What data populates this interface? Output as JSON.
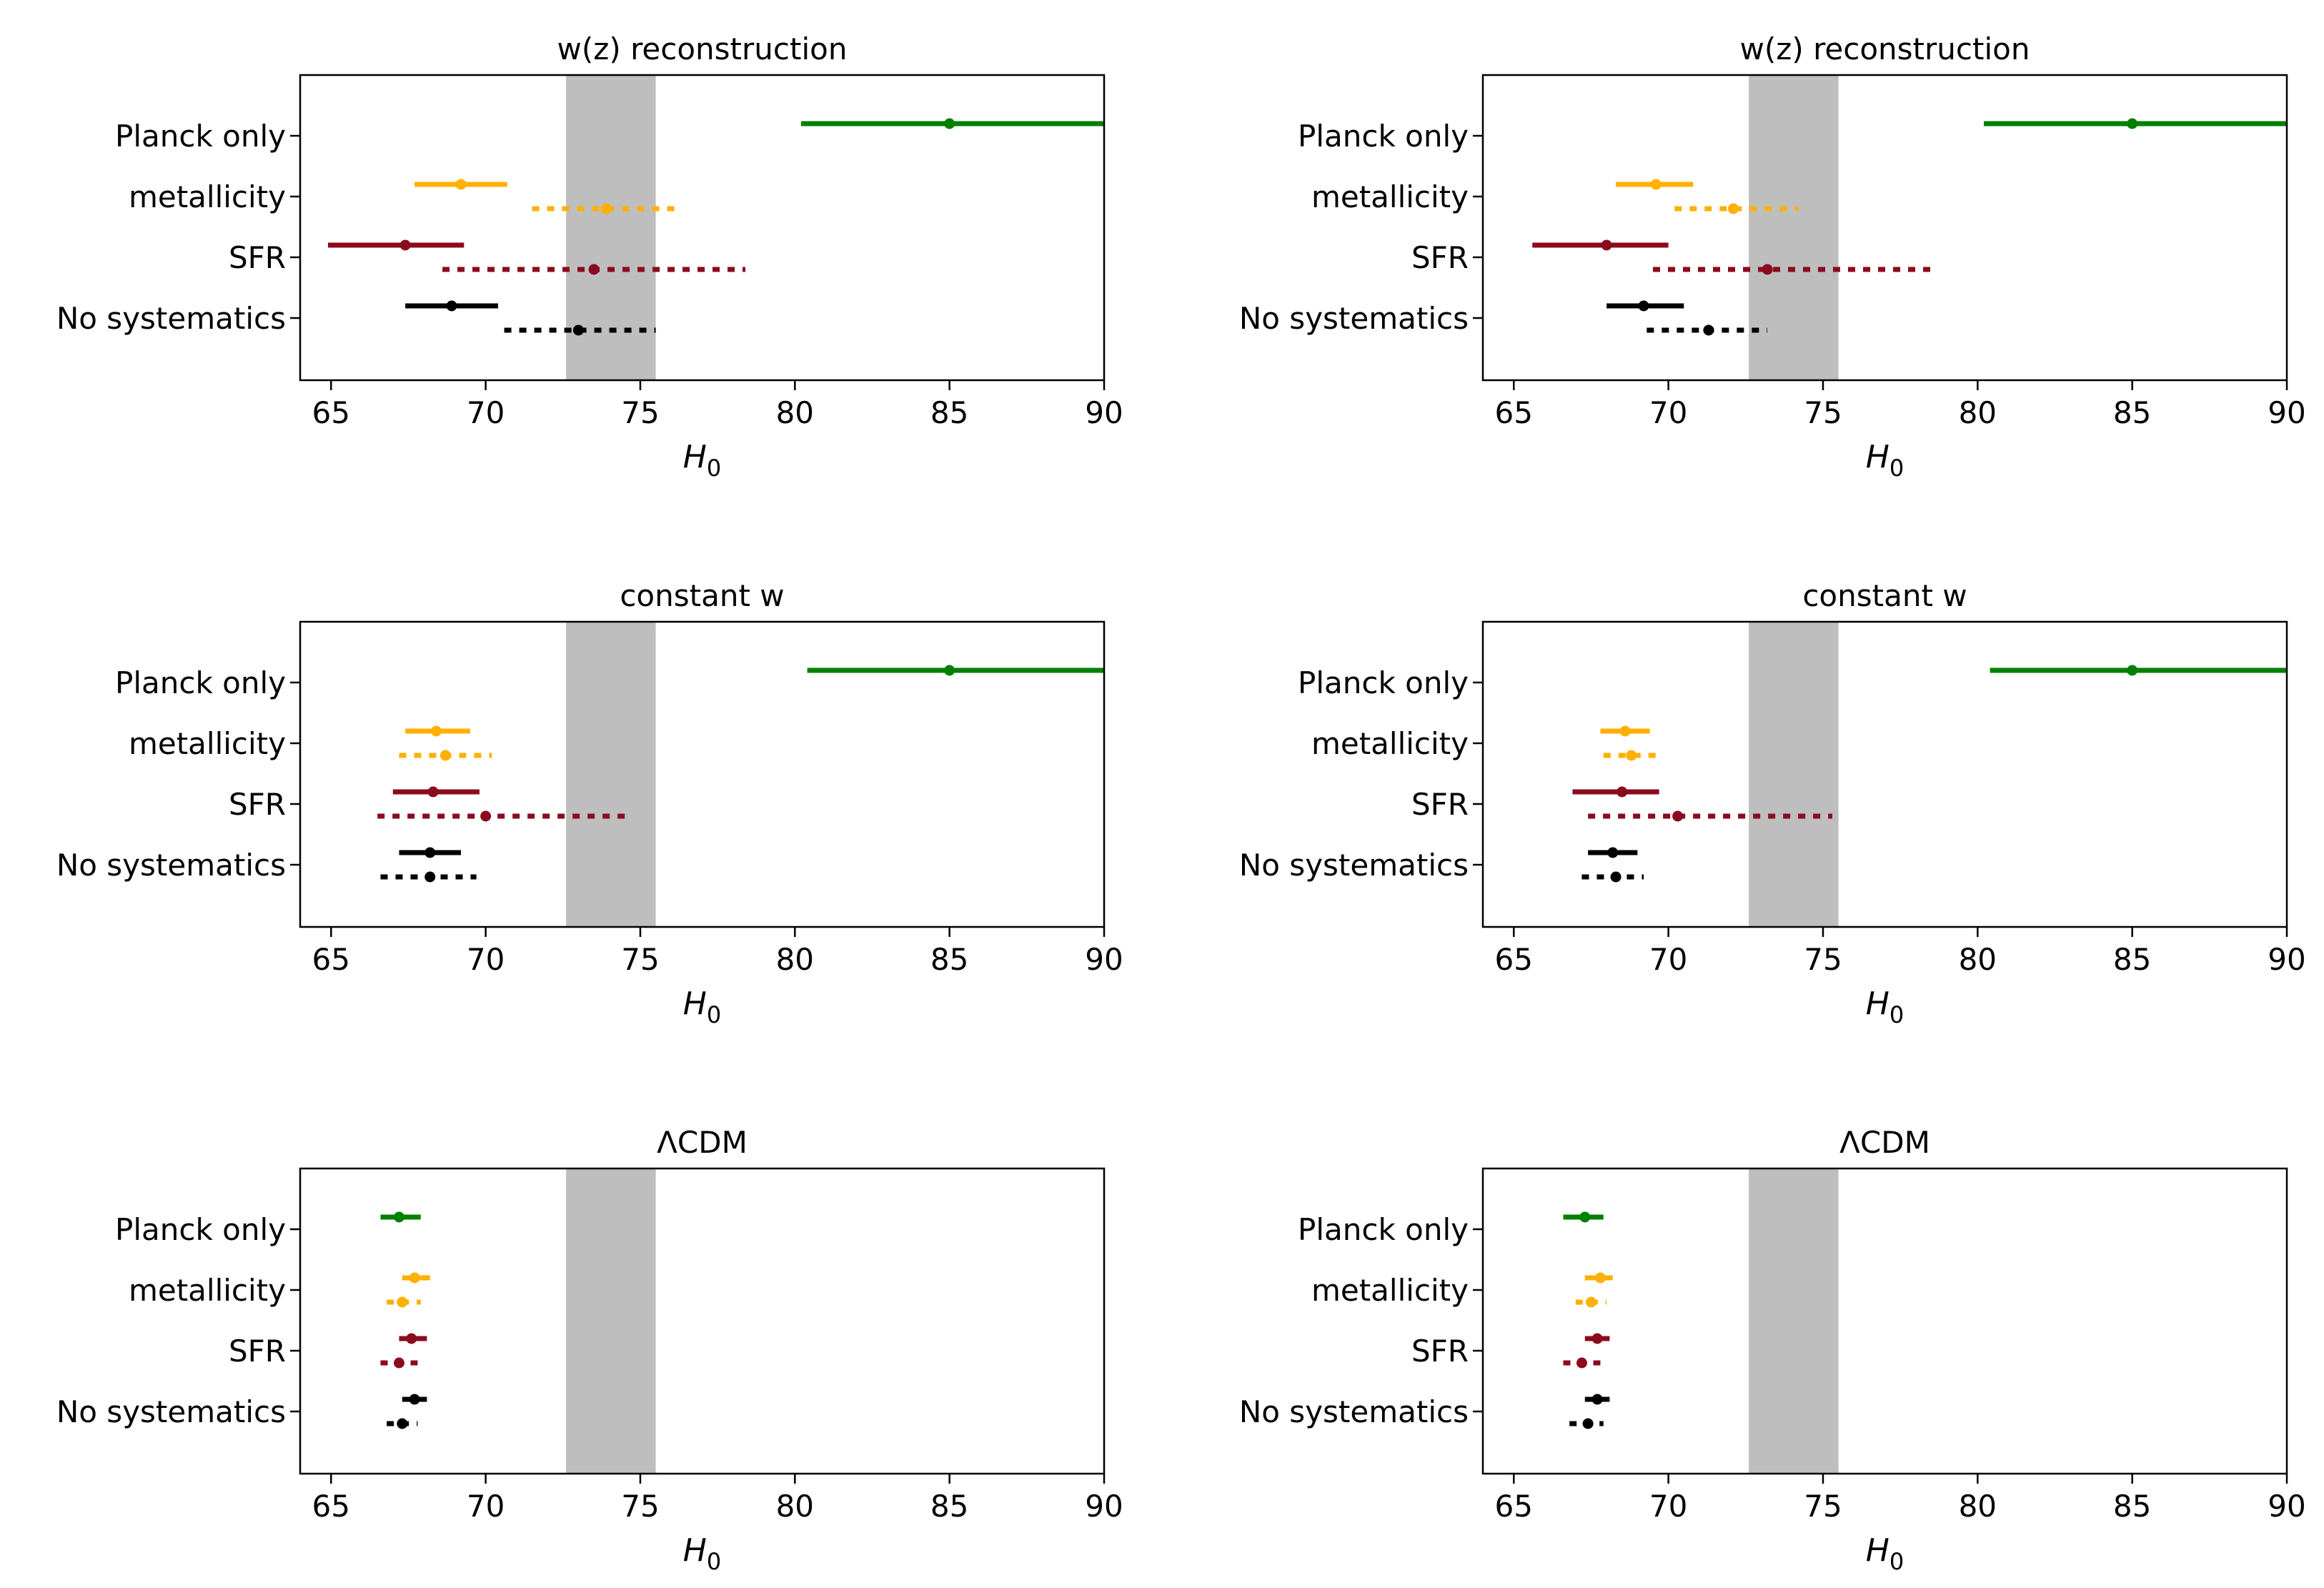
{
  "figure": {
    "colors": {
      "planck": "#008000",
      "metallicity": "#FFB000",
      "sfr": "#8B0A1E",
      "nosys": "#000000",
      "shaded_band": "#BEBEBE"
    }
  },
  "chart_data": [
    {
      "type": "errorbar",
      "title": "w(z) reconstruction",
      "xlabel": "H0",
      "xlim": [
        64,
        90
      ],
      "xticks": [
        "65",
        "70",
        "75",
        "80",
        "85",
        "90"
      ],
      "shaded_band": [
        72.6,
        75.5
      ],
      "categories": [
        "Planck only",
        "metallicity",
        "SFR",
        "No systematics"
      ],
      "points": [
        {
          "category": "Planck only",
          "style": "solid",
          "color": "planck",
          "value": 85.0,
          "low": 80.2,
          "high": 90.0
        },
        {
          "category": "metallicity",
          "style": "solid",
          "color": "metallicity",
          "value": 69.2,
          "low": 67.7,
          "high": 70.7
        },
        {
          "category": "metallicity",
          "style": "dotted",
          "color": "metallicity",
          "value": 73.9,
          "low": 71.5,
          "high": 76.3
        },
        {
          "category": "SFR",
          "style": "solid",
          "color": "sfr",
          "value": 67.4,
          "low": 64.9,
          "high": 69.3
        },
        {
          "category": "SFR",
          "style": "dotted",
          "color": "sfr",
          "value": 73.5,
          "low": 68.6,
          "high": 78.4
        },
        {
          "category": "No systematics",
          "style": "solid",
          "color": "nosys",
          "value": 68.9,
          "low": 67.4,
          "high": 70.4
        },
        {
          "category": "No systematics",
          "style": "dotted",
          "color": "nosys",
          "value": 73.0,
          "low": 70.6,
          "high": 75.5
        }
      ]
    },
    {
      "type": "errorbar",
      "title": "w(z) reconstruction",
      "xlabel": "H0",
      "xlim": [
        64,
        90
      ],
      "xticks": [
        "65",
        "70",
        "75",
        "80",
        "85",
        "90"
      ],
      "shaded_band": [
        72.6,
        75.5
      ],
      "categories": [
        "Planck only",
        "metallicity",
        "SFR",
        "No systematics"
      ],
      "points": [
        {
          "category": "Planck only",
          "style": "solid",
          "color": "planck",
          "value": 85.0,
          "low": 80.2,
          "high": 90.0
        },
        {
          "category": "metallicity",
          "style": "solid",
          "color": "metallicity",
          "value": 69.6,
          "low": 68.3,
          "high": 70.8
        },
        {
          "category": "metallicity",
          "style": "dotted",
          "color": "metallicity",
          "value": 72.1,
          "low": 70.2,
          "high": 74.2
        },
        {
          "category": "SFR",
          "style": "solid",
          "color": "sfr",
          "value": 68.0,
          "low": 65.6,
          "high": 70.0
        },
        {
          "category": "SFR",
          "style": "dotted",
          "color": "sfr",
          "value": 73.2,
          "low": 69.5,
          "high": 78.6
        },
        {
          "category": "No systematics",
          "style": "solid",
          "color": "nosys",
          "value": 69.2,
          "low": 68.0,
          "high": 70.5
        },
        {
          "category": "No systematics",
          "style": "dotted",
          "color": "nosys",
          "value": 71.3,
          "low": 69.3,
          "high": 73.2
        }
      ]
    },
    {
      "type": "errorbar",
      "title": "constant w",
      "xlabel": "H0",
      "xlim": [
        64,
        90
      ],
      "xticks": [
        "65",
        "70",
        "75",
        "80",
        "85",
        "90"
      ],
      "shaded_band": [
        72.6,
        75.5
      ],
      "categories": [
        "Planck only",
        "metallicity",
        "SFR",
        "No systematics"
      ],
      "points": [
        {
          "category": "Planck only",
          "style": "solid",
          "color": "planck",
          "value": 85.0,
          "low": 80.4,
          "high": 90.0
        },
        {
          "category": "metallicity",
          "style": "solid",
          "color": "metallicity",
          "value": 68.4,
          "low": 67.4,
          "high": 69.5
        },
        {
          "category": "metallicity",
          "style": "dotted",
          "color": "metallicity",
          "value": 68.7,
          "low": 67.2,
          "high": 70.2
        },
        {
          "category": "SFR",
          "style": "solid",
          "color": "sfr",
          "value": 68.3,
          "low": 67.0,
          "high": 69.8
        },
        {
          "category": "SFR",
          "style": "dotted",
          "color": "sfr",
          "value": 70.0,
          "low": 66.5,
          "high": 74.6
        },
        {
          "category": "No systematics",
          "style": "solid",
          "color": "nosys",
          "value": 68.2,
          "low": 67.2,
          "high": 69.2
        },
        {
          "category": "No systematics",
          "style": "dotted",
          "color": "nosys",
          "value": 68.2,
          "low": 66.6,
          "high": 69.7
        }
      ]
    },
    {
      "type": "errorbar",
      "title": "constant w",
      "xlabel": "H0",
      "xlim": [
        64,
        90
      ],
      "xticks": [
        "65",
        "70",
        "75",
        "80",
        "85",
        "90"
      ],
      "shaded_band": [
        72.6,
        75.5
      ],
      "categories": [
        "Planck only",
        "metallicity",
        "SFR",
        "No systematics"
      ],
      "points": [
        {
          "category": "Planck only",
          "style": "solid",
          "color": "planck",
          "value": 85.0,
          "low": 80.4,
          "high": 90.0
        },
        {
          "category": "metallicity",
          "style": "solid",
          "color": "metallicity",
          "value": 68.6,
          "low": 67.8,
          "high": 69.4
        },
        {
          "category": "metallicity",
          "style": "dotted",
          "color": "metallicity",
          "value": 68.8,
          "low": 67.9,
          "high": 69.8
        },
        {
          "category": "SFR",
          "style": "solid",
          "color": "sfr",
          "value": 68.5,
          "low": 66.9,
          "high": 69.7
        },
        {
          "category": "SFR",
          "style": "dotted",
          "color": "sfr",
          "value": 70.3,
          "low": 67.4,
          "high": 75.3
        },
        {
          "category": "No systematics",
          "style": "solid",
          "color": "nosys",
          "value": 68.2,
          "low": 67.4,
          "high": 69.0
        },
        {
          "category": "No systematics",
          "style": "dotted",
          "color": "nosys",
          "value": 68.3,
          "low": 67.2,
          "high": 69.2
        }
      ]
    },
    {
      "type": "errorbar",
      "title": "ΛCDM",
      "xlabel": "H0",
      "xlim": [
        64,
        90
      ],
      "xticks": [
        "65",
        "70",
        "75",
        "80",
        "85",
        "90"
      ],
      "shaded_band": [
        72.6,
        75.5
      ],
      "categories": [
        "Planck only",
        "metallicity",
        "SFR",
        "No systematics"
      ],
      "points": [
        {
          "category": "Planck only",
          "style": "solid",
          "color": "planck",
          "value": 67.2,
          "low": 66.6,
          "high": 67.9
        },
        {
          "category": "metallicity",
          "style": "solid",
          "color": "metallicity",
          "value": 67.7,
          "low": 67.3,
          "high": 68.2
        },
        {
          "category": "metallicity",
          "style": "dotted",
          "color": "metallicity",
          "value": 67.3,
          "low": 66.8,
          "high": 67.9
        },
        {
          "category": "SFR",
          "style": "solid",
          "color": "sfr",
          "value": 67.6,
          "low": 67.2,
          "high": 68.1
        },
        {
          "category": "SFR",
          "style": "dotted",
          "color": "sfr",
          "value": 67.2,
          "low": 66.6,
          "high": 67.8
        },
        {
          "category": "No systematics",
          "style": "solid",
          "color": "nosys",
          "value": 67.7,
          "low": 67.3,
          "high": 68.1
        },
        {
          "category": "No systematics",
          "style": "dotted",
          "color": "nosys",
          "value": 67.3,
          "low": 66.8,
          "high": 67.8
        }
      ]
    },
    {
      "type": "errorbar",
      "title": "ΛCDM",
      "xlabel": "H0",
      "xlim": [
        64,
        90
      ],
      "xticks": [
        "65",
        "70",
        "75",
        "80",
        "85",
        "90"
      ],
      "shaded_band": [
        72.6,
        75.5
      ],
      "categories": [
        "Planck only",
        "metallicity",
        "SFR",
        "No systematics"
      ],
      "points": [
        {
          "category": "Planck only",
          "style": "solid",
          "color": "planck",
          "value": 67.3,
          "low": 66.6,
          "high": 67.9
        },
        {
          "category": "metallicity",
          "style": "solid",
          "color": "metallicity",
          "value": 67.8,
          "low": 67.3,
          "high": 68.2
        },
        {
          "category": "metallicity",
          "style": "dotted",
          "color": "metallicity",
          "value": 67.5,
          "low": 67.0,
          "high": 68.0
        },
        {
          "category": "SFR",
          "style": "solid",
          "color": "sfr",
          "value": 67.7,
          "low": 67.3,
          "high": 68.1
        },
        {
          "category": "SFR",
          "style": "dotted",
          "color": "sfr",
          "value": 67.2,
          "low": 66.6,
          "high": 67.8
        },
        {
          "category": "No systematics",
          "style": "solid",
          "color": "nosys",
          "value": 67.7,
          "low": 67.3,
          "high": 68.1
        },
        {
          "category": "No systematics",
          "style": "dotted",
          "color": "nosys",
          "value": 67.4,
          "low": 66.8,
          "high": 67.9
        }
      ]
    }
  ]
}
